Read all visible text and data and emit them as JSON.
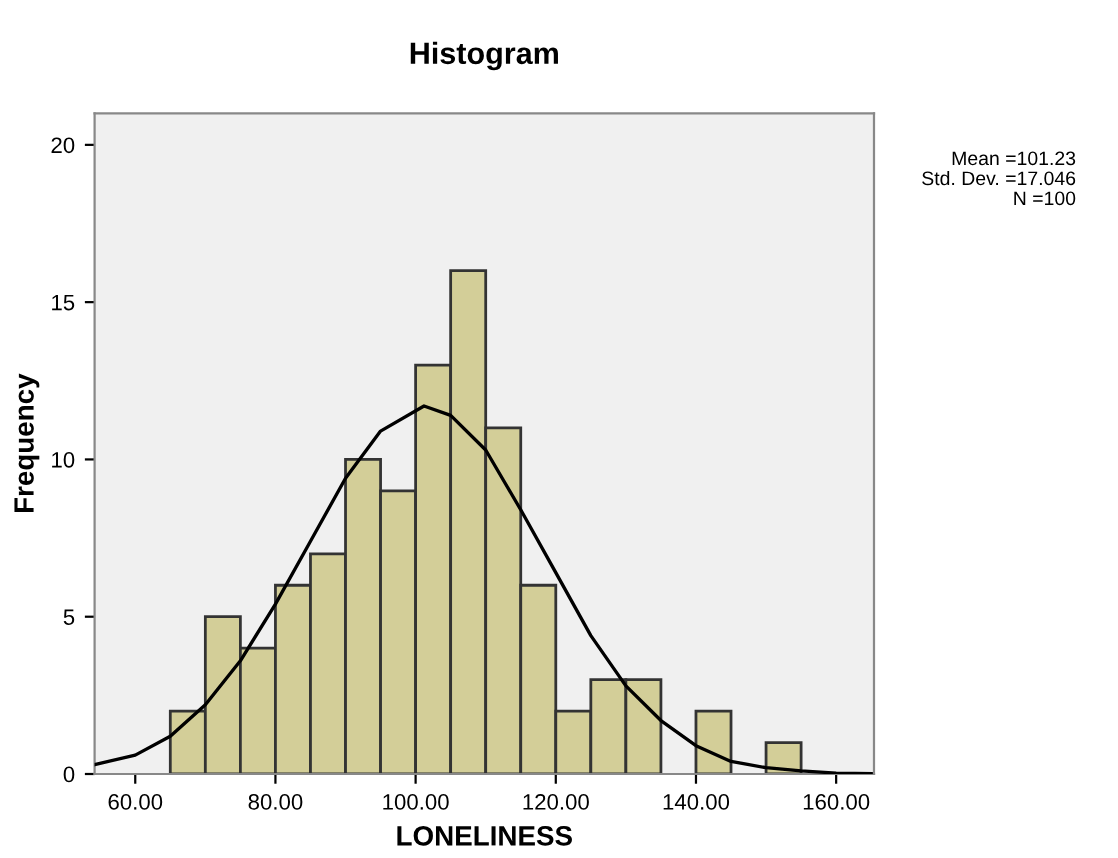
{
  "chart_data": {
    "type": "histogram",
    "title": "Histogram",
    "xlabel": "LONELINESS",
    "ylabel": "Frequency",
    "bins": [
      65,
      70,
      75,
      80,
      85,
      90,
      95,
      100,
      105,
      110,
      115,
      120,
      125,
      130,
      135,
      140,
      145,
      150,
      155
    ],
    "series": [
      {
        "type": "histogram",
        "color": "#d3ce98",
        "values": [
          2,
          5,
          4,
          6,
          7,
          10,
          9,
          13,
          16,
          11,
          6,
          2,
          3,
          3,
          0,
          2,
          0,
          1
        ]
      },
      {
        "type": "line",
        "color": "#000000",
        "x": [
          54.2,
          60,
          65,
          70,
          75,
          80,
          85,
          90,
          95,
          101.2,
          105,
          110,
          115,
          120,
          125,
          130,
          135,
          140,
          145,
          150,
          155,
          160,
          165
        ],
        "values": [
          0.3,
          0.6,
          1.2,
          2.2,
          3.6,
          5.4,
          7.4,
          9.4,
          10.9,
          11.7,
          11.4,
          10.3,
          8.4,
          6.4,
          4.4,
          2.8,
          1.7,
          0.9,
          0.4,
          0.2,
          0.1,
          0.03,
          0.01
        ]
      }
    ],
    "xlim": [
      54.2,
      165.4
    ],
    "ylim": [
      0,
      21
    ],
    "xticks": [
      {
        "value": 60,
        "label": "60.00"
      },
      {
        "value": 80,
        "label": "80.00"
      },
      {
        "value": 100,
        "label": "100.00"
      },
      {
        "value": 120,
        "label": "120.00"
      },
      {
        "value": 140,
        "label": "140.00"
      },
      {
        "value": 160,
        "label": "160.00"
      }
    ],
    "yticks": [
      0,
      5,
      10,
      15,
      20
    ],
    "annotations": [
      "Mean =101.23",
      "Std. Dev. =17.046",
      "N =100"
    ],
    "grid": false,
    "marker": "none",
    "line_style": "solid"
  }
}
